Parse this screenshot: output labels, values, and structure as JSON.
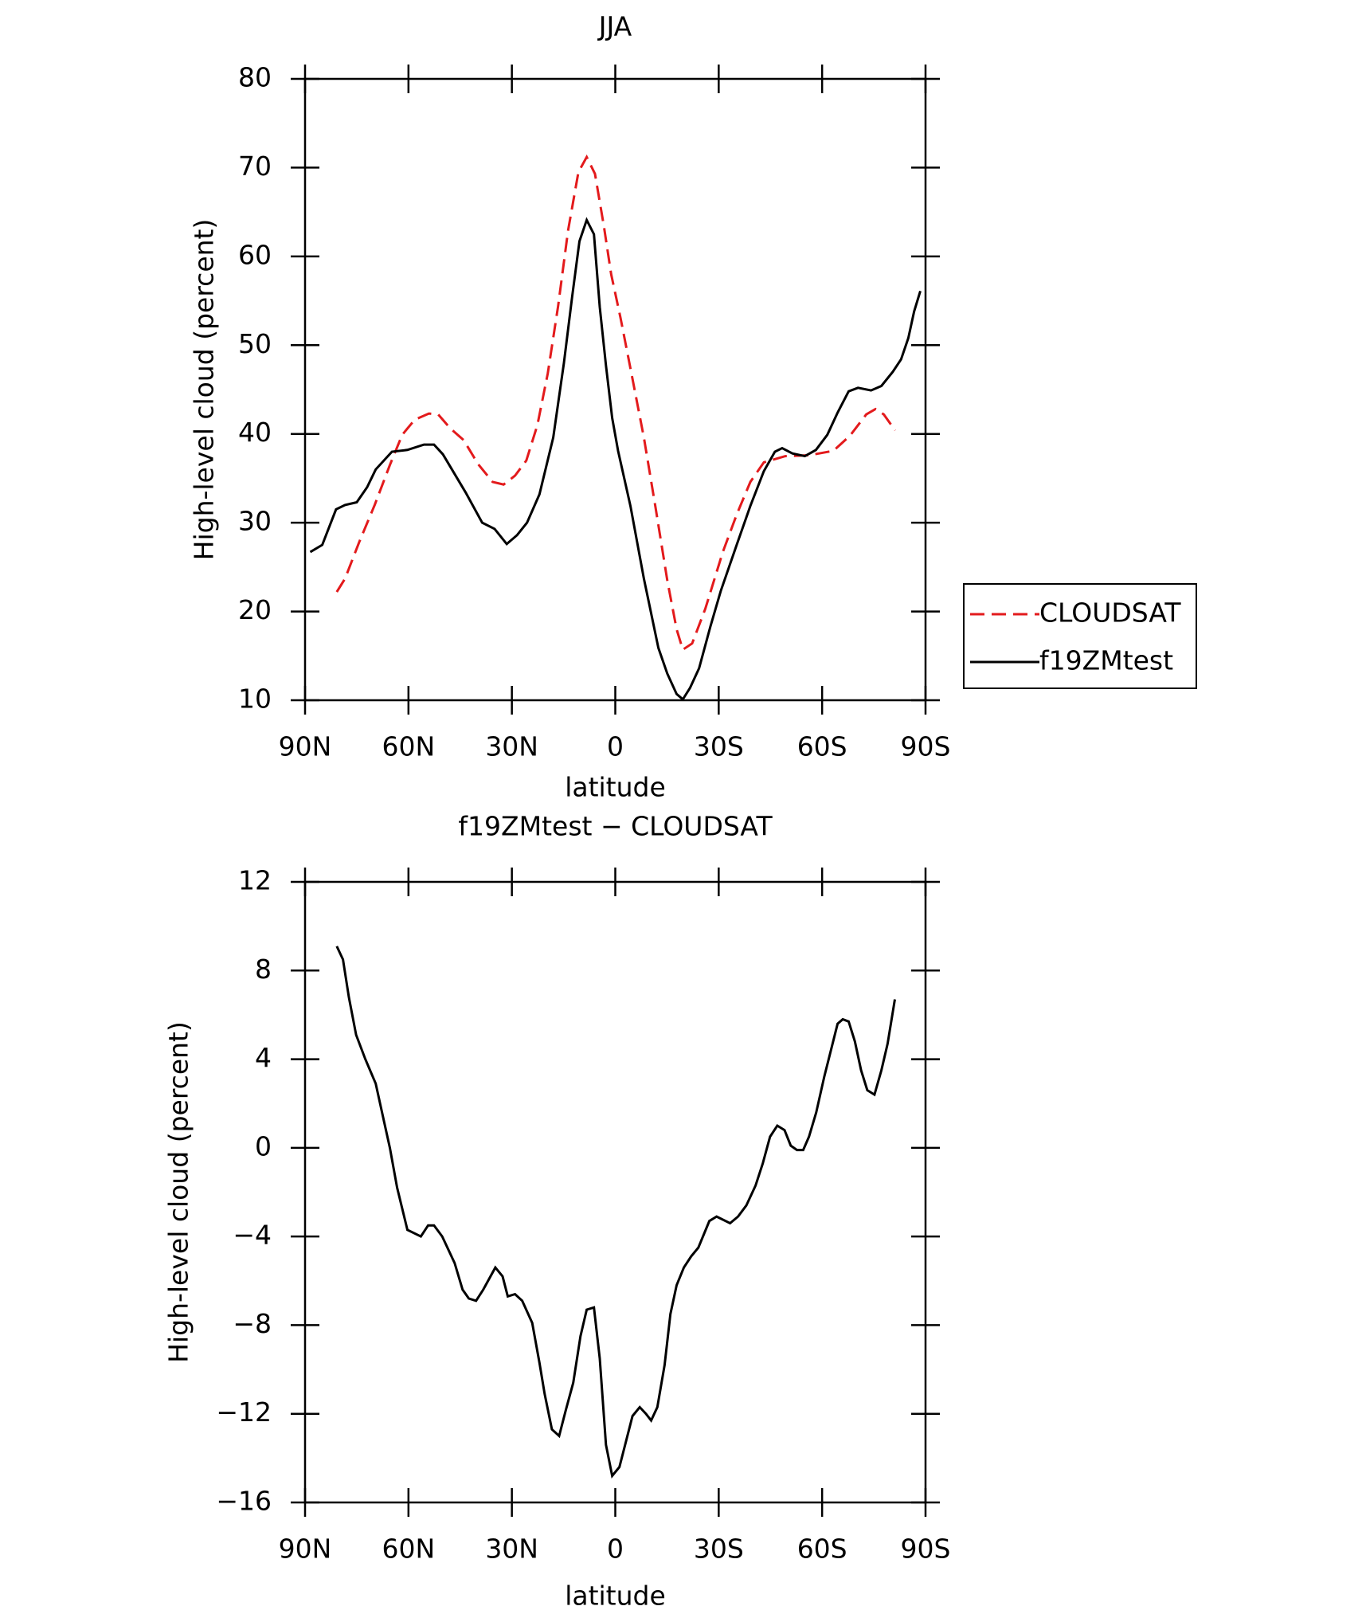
{
  "chart_data": [
    {
      "type": "line",
      "title": "JJA",
      "xlabel": "latitude",
      "ylabel": "High-level cloud (percent)",
      "xlim": [
        90,
        -90
      ],
      "xticks": [
        {
          "value": 90,
          "label": "90N"
        },
        {
          "value": 60,
          "label": "60N"
        },
        {
          "value": 30,
          "label": "30N"
        },
        0,
        {
          "value": -30,
          "label": "30S"
        },
        {
          "value": -60,
          "label": "60S"
        },
        {
          "value": -90,
          "label": "90S"
        }
      ],
      "ylim": [
        10,
        80
      ],
      "yticks": [
        10,
        20,
        30,
        40,
        50,
        60,
        70,
        80
      ],
      "legend": "right",
      "series": [
        {
          "name": "CLOUDSAT",
          "color": "#e31a1c",
          "linestyle": "dashed",
          "x": [
            80.8,
            78.4,
            74.3,
            69.8,
            65.4,
            61.8,
            58.2,
            54.1,
            51.4,
            47.8,
            44,
            39.8,
            35.6,
            32.4,
            29.1,
            25.8,
            22.6,
            19.6,
            16.6,
            13.7,
            10.7,
            8.3,
            5.9,
            3.3,
            1.2,
            -1.5,
            -4.7,
            -8.3,
            -11.6,
            -15.1,
            -17.8,
            -19.6,
            -22.3,
            -26.1,
            -31.2,
            -35.3,
            -39.2,
            -43.1,
            -49.3,
            -56.2,
            -63.3,
            -68.1,
            -72.8,
            -75.5,
            -77.9,
            -81.2
          ],
          "values": [
            22.2,
            23.7,
            27.8,
            32,
            36.5,
            39.9,
            41.6,
            42.3,
            42.2,
            40.6,
            39.3,
            36.6,
            34.6,
            34.3,
            35.3,
            37,
            41,
            46.8,
            54.4,
            62.9,
            69.5,
            71.2,
            69.3,
            63.4,
            58,
            53.1,
            46.8,
            39.6,
            31.9,
            23.5,
            18,
            15.7,
            16.4,
            20.3,
            26.7,
            31,
            34.6,
            36.8,
            37.5,
            37.6,
            38.1,
            39.8,
            42.2,
            42.8,
            42.2,
            40.4
          ]
        },
        {
          "name": "f19ZMtest",
          "color": "#000000",
          "linestyle": "solid",
          "x": [
            88.5,
            85,
            81,
            78.4,
            75,
            72,
            69.5,
            64.8,
            60.3,
            55.5,
            52.6,
            50,
            43.4,
            38.6,
            35,
            31.5,
            28.5,
            25.6,
            22,
            18,
            14.9,
            12.5,
            10.4,
            8.3,
            6.2,
            4.5,
            2.7,
            0.9,
            -0.8,
            -4.4,
            -8.3,
            -12.5,
            -15.1,
            -17.8,
            -19.6,
            -21.7,
            -24.3,
            -27.6,
            -30.6,
            -35.3,
            -39.2,
            -43.1,
            -46.3,
            -48.4,
            -51.4,
            -55,
            -58.2,
            -61.5,
            -64.5,
            -67.7,
            -70.4,
            -74.2,
            -77.2,
            -80.5,
            -82.9,
            -85,
            -86.7,
            -88.5
          ],
          "values": [
            26.7,
            27.5,
            31.5,
            32,
            32.3,
            34,
            36,
            38,
            38.2,
            38.8,
            38.8,
            37.7,
            33.4,
            30,
            29.3,
            27.6,
            28.6,
            30,
            33.2,
            39.6,
            48,
            55.5,
            61.7,
            64.1,
            62.5,
            54.3,
            47.7,
            41.8,
            38.1,
            31.9,
            23.7,
            15.9,
            13,
            10.7,
            10.1,
            11.4,
            13.6,
            18.3,
            22.3,
            27.6,
            31.9,
            35.8,
            38,
            38.4,
            37.8,
            37.5,
            38.2,
            39.9,
            42.4,
            44.8,
            45.2,
            44.9,
            45.4,
            47,
            48.4,
            50.8,
            53.8,
            56.1
          ]
        }
      ]
    },
    {
      "type": "line",
      "title": "f19ZMtest − CLOUDSAT",
      "xlabel": "latitude",
      "ylabel": "High-level cloud (percent)",
      "xlim": [
        90,
        -90
      ],
      "xticks": [
        {
          "value": 90,
          "label": "90N"
        },
        {
          "value": 60,
          "label": "60N"
        },
        {
          "value": 30,
          "label": "30N"
        },
        0,
        {
          "value": -30,
          "label": "30S"
        },
        {
          "value": -60,
          "label": "60S"
        },
        {
          "value": -90,
          "label": "90S"
        }
      ],
      "ylim": [
        -16,
        12
      ],
      "yticks": [
        {
          "value": -16,
          "label": "−16"
        },
        {
          "value": -12,
          "label": "−12"
        },
        {
          "value": -8,
          "label": "−8"
        },
        {
          "value": -4,
          "label": "−4"
        },
        0,
        4,
        8,
        12
      ],
      "series": [
        {
          "color": "#000000",
          "linestyle": "solid",
          "x": [
            80.8,
            79,
            77.3,
            75.2,
            72.5,
            69.5,
            67.1,
            65.4,
            63.3,
            60.3,
            56.4,
            54.3,
            52.6,
            50.2,
            46.6,
            44.3,
            42.5,
            40.4,
            38.3,
            34.8,
            32.7,
            31.2,
            29.1,
            27,
            24.1,
            22,
            20.5,
            18.4,
            16.3,
            14.3,
            12.2,
            10.1,
            8.3,
            6.2,
            4.5,
            2.7,
            0.9,
            -1.2,
            -5,
            -7.1,
            -8.9,
            -10.4,
            -12.2,
            -14.3,
            -16,
            -17.8,
            -19.9,
            -22,
            -24.1,
            -27.3,
            -29.4,
            -33.3,
            -35.6,
            -38,
            -40.7,
            -42.8,
            -44.9,
            -47,
            -49.1,
            -50.9,
            -52.7,
            -54.5,
            -56.2,
            -58.3,
            -60.6,
            -62.7,
            -64.5,
            -66,
            -67.7,
            -69.5,
            -71.3,
            -73.1,
            -75.2,
            -77.2,
            -79,
            -81.1
          ],
          "values": [
            9.1,
            8.5,
            6.8,
            5.1,
            4,
            2.9,
            1.2,
            0,
            -1.8,
            -3.7,
            -4,
            -3.5,
            -3.5,
            -4,
            -5.2,
            -6.4,
            -6.8,
            -6.9,
            -6.4,
            -5.4,
            -5.8,
            -6.7,
            -6.6,
            -6.9,
            -7.9,
            -9.7,
            -11.1,
            -12.7,
            -13,
            -11.8,
            -10.6,
            -8.5,
            -7.3,
            -7.2,
            -9.5,
            -13.4,
            -14.8,
            -14.4,
            -12.1,
            -11.7,
            -12,
            -12.3,
            -11.7,
            -9.8,
            -7.5,
            -6.2,
            -5.4,
            -4.9,
            -4.5,
            -3.3,
            -3.1,
            -3.4,
            -3.1,
            -2.6,
            -1.7,
            -0.7,
            0.5,
            1,
            0.8,
            0.1,
            -0.1,
            -0.1,
            0.5,
            1.6,
            3.2,
            4.5,
            5.6,
            5.8,
            5.7,
            4.8,
            3.5,
            2.6,
            2.4,
            3.5,
            4.7,
            6.7
          ]
        }
      ]
    }
  ]
}
